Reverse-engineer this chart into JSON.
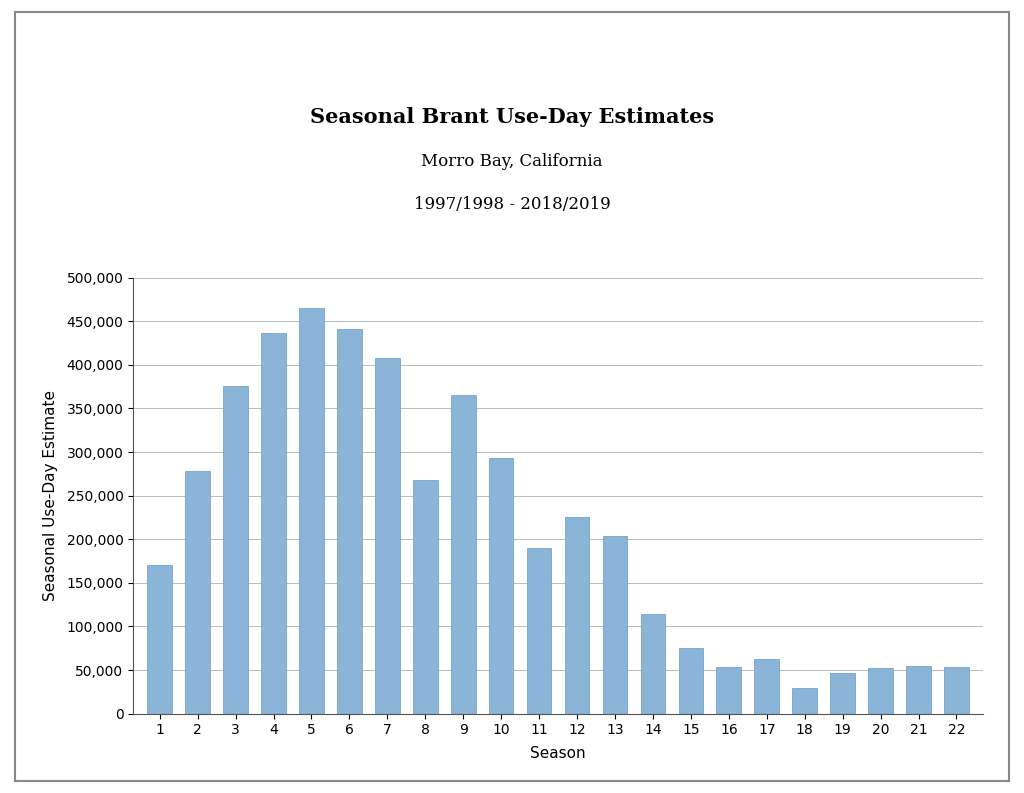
{
  "title_line1": "Seasonal Brant Use-Day Estimates",
  "title_line2": "Morro Bay, California",
  "title_line3": "1997/1998 - 2018/2019",
  "xlabel": "Season",
  "ylabel": "Seasonal Use-Day Estimate",
  "categories": [
    1,
    2,
    3,
    4,
    5,
    6,
    7,
    8,
    9,
    10,
    11,
    12,
    13,
    14,
    15,
    16,
    17,
    18,
    19,
    20,
    21,
    22
  ],
  "values": [
    170000,
    278000,
    376000,
    436000,
    465000,
    441000,
    408000,
    268000,
    365000,
    293000,
    190000,
    226000,
    204000,
    114000,
    75000,
    54000,
    63000,
    29000,
    47000,
    52000,
    55000,
    53000
  ],
  "bar_color": "#8ab4d8",
  "bar_edge_color": "#6699bb",
  "ylim": [
    0,
    500000
  ],
  "ytick_interval": 50000,
  "plot_bg_color": "#ffffff",
  "fig_bg_color": "#ffffff",
  "title_fontsize": 15,
  "subtitle_fontsize": 12,
  "axis_label_fontsize": 11,
  "tick_fontsize": 10,
  "grid_color": "#b0b0b0",
  "outer_border_color": "#888888",
  "bar_width": 0.65
}
